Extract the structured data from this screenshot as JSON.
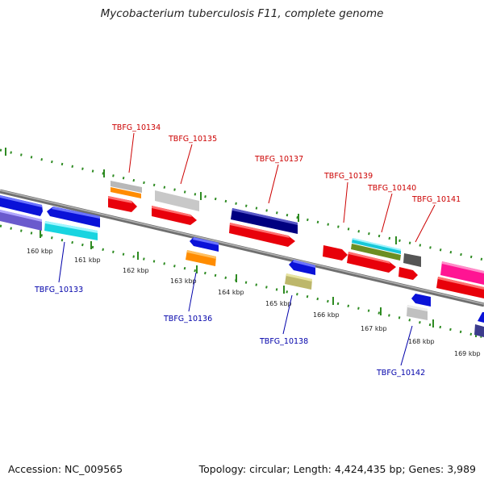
{
  "title": "Mycobacterium tuberculosis F11, complete genome",
  "footer": {
    "accession": "Accession: NC_009565",
    "summary": "Topology: circular; Length: 4,424,435 bp; Genes: 3,989"
  },
  "colors": {
    "backbone": "#8a8a8a",
    "ruler_dots": "#2e8b22",
    "upper_label": "#cc0000",
    "lower_label": "#0000aa"
  },
  "ruler_labels": [
    "160 kbp",
    "161 kbp",
    "162 kbp",
    "163 kbp",
    "164 kbp",
    "165 kbp",
    "166 kbp",
    "167 kbp",
    "168 kbp",
    "169 kbp"
  ],
  "upper_labels": [
    "TBFG_10134",
    "TBFG_10135",
    "TBFG_10137",
    "TBFG_10139",
    "TBFG_10140",
    "TBFG_10141"
  ],
  "lower_labels": [
    "TBFG_10133",
    "TBFG_10136",
    "TBFG_10138",
    "TBFG_10142"
  ]
}
